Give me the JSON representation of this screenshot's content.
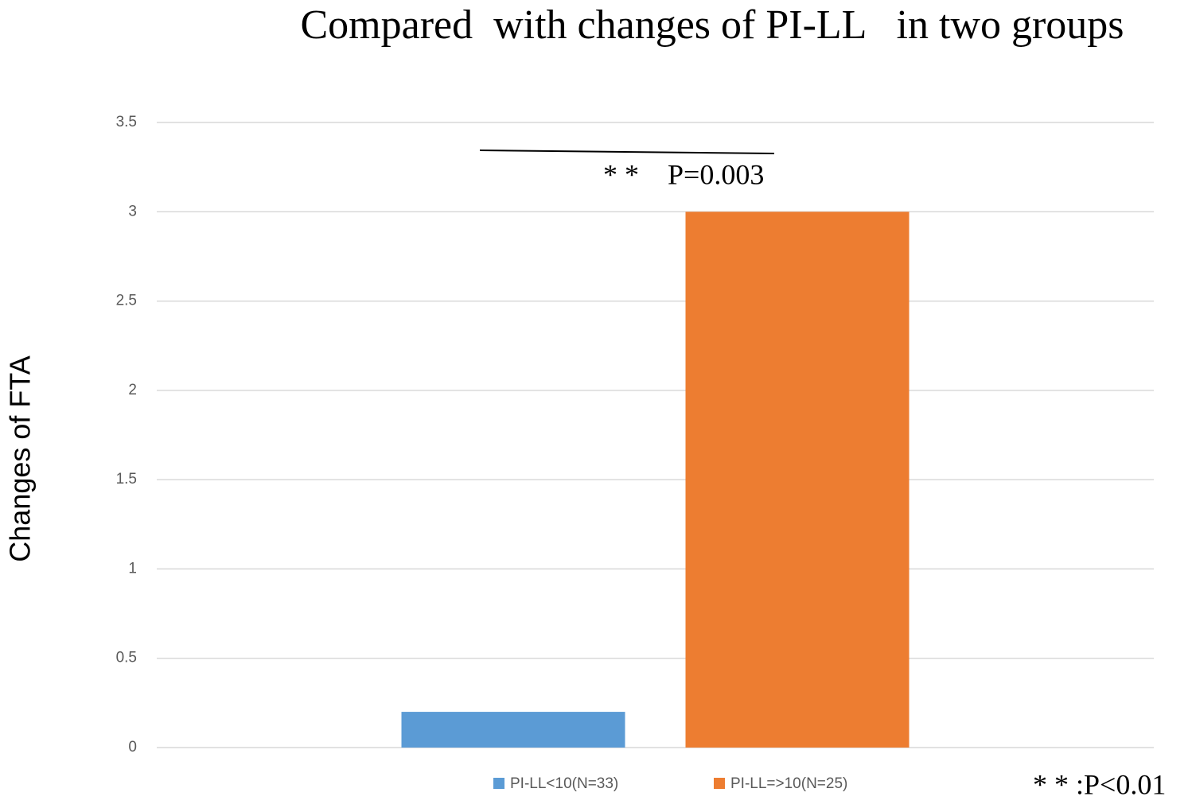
{
  "chart_data": {
    "type": "bar",
    "title": "Compared  with changes of PI-LL   in two groups",
    "y_label": "Changes of FTA",
    "categories": [
      null
    ],
    "series": [
      {
        "name": "PI-LL<10(N=33)",
        "color": "#5b9bd5",
        "values": [
          0.2
        ]
      },
      {
        "name": "PI-LL=>10(N=25)",
        "color": "#ed7d31",
        "values": [
          3
        ]
      }
    ],
    "ylim": [
      0,
      3.5
    ],
    "yticks": [
      0,
      0.5,
      1,
      1.5,
      2,
      2.5,
      3,
      3.5
    ],
    "grid": true,
    "legend": "bottom",
    "annotations": [
      "* *    P=0.003",
      "* * :P<0.01"
    ]
  }
}
